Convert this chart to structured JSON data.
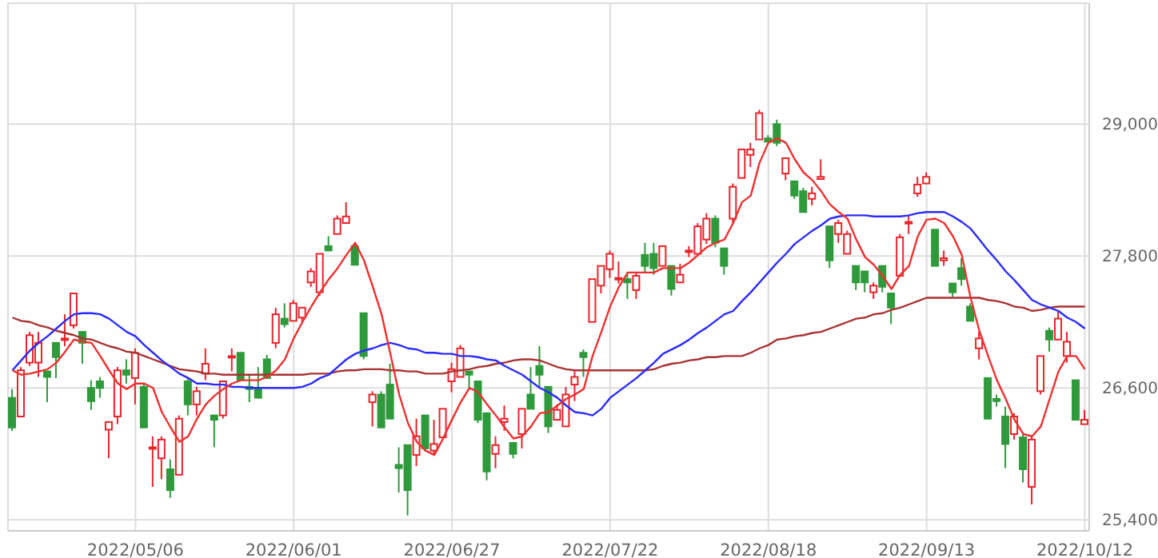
{
  "chart_data": {
    "type": "candlestick",
    "categories": [
      null,
      null,
      null,
      null,
      null,
      null,
      null,
      null,
      null,
      null,
      null,
      null,
      null,
      null,
      "2022/05/06",
      null,
      null,
      null,
      null,
      null,
      null,
      null,
      null,
      null,
      null,
      null,
      null,
      null,
      null,
      null,
      null,
      null,
      "2022/06/01",
      null,
      null,
      null,
      null,
      null,
      null,
      null,
      null,
      null,
      null,
      null,
      null,
      null,
      null,
      null,
      null,
      null,
      "2022/06/27",
      null,
      null,
      null,
      null,
      null,
      null,
      null,
      null,
      null,
      null,
      null,
      null,
      null,
      null,
      null,
      null,
      null,
      "2022/07/22",
      null,
      null,
      null,
      null,
      null,
      null,
      null,
      null,
      null,
      null,
      null,
      null,
      null,
      null,
      null,
      null,
      null,
      "2022/08/18",
      null,
      null,
      null,
      null,
      null,
      null,
      null,
      null,
      null,
      null,
      null,
      null,
      null,
      null,
      null,
      null,
      null,
      "2022/09/13",
      null,
      null,
      null,
      null,
      null,
      null,
      null,
      null,
      null,
      null,
      null,
      null,
      null,
      null,
      null,
      null,
      null,
      "2022/10/12"
    ],
    "ylim": [
      25300,
      30100
    ],
    "yticks": [
      {
        "value": 25400,
        "label": "25,400"
      },
      {
        "value": 26600,
        "label": "26,600"
      },
      {
        "value": 27800,
        "label": "27,800"
      },
      {
        "value": 29000,
        "label": "29,000"
      }
    ],
    "grid": true,
    "ohlc": [
      [
        26510,
        26590,
        26210,
        26240
      ],
      [
        26340,
        26790,
        26320,
        26760
      ],
      [
        26830,
        27110,
        26800,
        27080
      ],
      [
        26830,
        27110,
        26700,
        27010
      ],
      [
        26750,
        26760,
        26470,
        26700
      ],
      [
        27010,
        27020,
        26690,
        26880
      ],
      [
        27040,
        27270,
        26980,
        27050
      ],
      [
        27170,
        27470,
        27140,
        27460
      ],
      [
        27110,
        27110,
        26820,
        27010
      ],
      [
        26600,
        26670,
        26400,
        26480
      ],
      [
        26660,
        26700,
        26510,
        26600
      ],
      [
        26220,
        26310,
        25960,
        26290
      ],
      [
        26340,
        26790,
        26270,
        26760
      ],
      [
        26760,
        26860,
        26640,
        26720
      ],
      [
        26690,
        26960,
        26450,
        26920
      ],
      [
        26610,
        26640,
        26240,
        26240
      ],
      [
        26050,
        26160,
        25700,
        26060
      ],
      [
        25960,
        26160,
        25770,
        26130
      ],
      [
        25860,
        25950,
        25600,
        25670
      ],
      [
        25810,
        26350,
        25800,
        26320
      ],
      [
        26660,
        26690,
        26350,
        26450
      ],
      [
        26450,
        26610,
        26350,
        26570
      ],
      [
        26730,
        26960,
        26670,
        26820
      ],
      [
        26350,
        26350,
        26060,
        26310
      ],
      [
        26350,
        26670,
        26320,
        26660
      ],
      [
        26880,
        26960,
        26750,
        26890
      ],
      [
        26920,
        26920,
        26670,
        26670
      ],
      [
        26610,
        26720,
        26470,
        26590
      ],
      [
        26600,
        26790,
        26500,
        26510
      ],
      [
        26860,
        26900,
        26670,
        26690
      ],
      [
        27010,
        27330,
        26960,
        27270
      ],
      [
        27230,
        27370,
        27150,
        27180
      ],
      [
        27210,
        27400,
        27200,
        27370
      ],
      [
        27240,
        27330,
        27200,
        27330
      ],
      [
        27560,
        27690,
        27520,
        27660
      ],
      [
        27470,
        27840,
        27440,
        27820
      ],
      [
        27890,
        27980,
        27840,
        27850
      ],
      [
        28000,
        28170,
        27980,
        28140
      ],
      [
        28100,
        28290,
        28080,
        28160
      ],
      [
        27890,
        27920,
        27720,
        27720
      ],
      [
        27280,
        27300,
        26860,
        26890
      ],
      [
        26470,
        26570,
        26250,
        26540
      ],
      [
        26540,
        26570,
        26240,
        26240
      ],
      [
        26630,
        26820,
        26320,
        26320
      ],
      [
        25900,
        26060,
        25650,
        25870
      ],
      [
        26080,
        26080,
        25440,
        25670
      ],
      [
        25990,
        26320,
        25890,
        26160
      ],
      [
        26350,
        26350,
        26020,
        26050
      ],
      [
        26030,
        26310,
        25990,
        26090
      ],
      [
        26150,
        26430,
        26130,
        26410
      ],
      [
        26660,
        26830,
        26560,
        26770
      ],
      [
        26700,
        26990,
        26690,
        26960
      ],
      [
        26750,
        26760,
        26600,
        26720
      ],
      [
        26660,
        26670,
        26280,
        26310
      ],
      [
        26370,
        26370,
        25760,
        25840
      ],
      [
        26000,
        26160,
        25870,
        26080
      ],
      [
        26290,
        26440,
        26210,
        26320
      ],
      [
        26100,
        26100,
        25960,
        26000
      ],
      [
        26180,
        26430,
        26050,
        26410
      ],
      [
        26540,
        26790,
        26410,
        26410
      ],
      [
        26800,
        26980,
        26610,
        26720
      ],
      [
        26610,
        26610,
        26190,
        26250
      ],
      [
        26310,
        26450,
        26290,
        26400
      ],
      [
        26250,
        26610,
        26240,
        26540
      ],
      [
        26630,
        26760,
        26480,
        26700
      ],
      [
        26920,
        26950,
        26700,
        26880
      ],
      [
        27200,
        27600,
        27180,
        27590
      ],
      [
        27530,
        27720,
        27460,
        27710
      ],
      [
        27680,
        27850,
        27600,
        27820
      ],
      [
        27590,
        27750,
        27550,
        27600
      ],
      [
        27590,
        27650,
        27410,
        27560
      ],
      [
        27490,
        27650,
        27410,
        27620
      ],
      [
        27810,
        27920,
        27650,
        27710
      ],
      [
        27820,
        27920,
        27630,
        27690
      ],
      [
        27710,
        27890,
        27690,
        27890
      ],
      [
        27710,
        27730,
        27440,
        27500
      ],
      [
        27560,
        27730,
        27550,
        27630
      ],
      [
        27840,
        27890,
        27790,
        27850
      ],
      [
        27820,
        28100,
        27810,
        28070
      ],
      [
        27950,
        28190,
        27910,
        28140
      ],
      [
        28140,
        28170,
        27880,
        27920
      ],
      [
        27870,
        27870,
        27630,
        27710
      ],
      [
        28140,
        28460,
        28100,
        28430
      ],
      [
        28510,
        28780,
        28490,
        28770
      ],
      [
        28720,
        28830,
        28610,
        28770
      ],
      [
        28860,
        29130,
        28860,
        29100
      ],
      [
        28870,
        28900,
        28840,
        28840
      ],
      [
        29000,
        29040,
        28800,
        28830
      ],
      [
        28550,
        28710,
        28490,
        28690
      ],
      [
        28480,
        28480,
        28320,
        28350
      ],
      [
        28390,
        28420,
        28190,
        28200
      ],
      [
        28320,
        28430,
        28260,
        28370
      ],
      [
        28500,
        28680,
        28490,
        28520
      ],
      [
        28070,
        28070,
        27690,
        27760
      ],
      [
        28000,
        28130,
        27920,
        28100
      ],
      [
        27820,
        28030,
        27810,
        28000
      ],
      [
        27710,
        27720,
        27490,
        27560
      ],
      [
        27660,
        27660,
        27470,
        27560
      ],
      [
        27470,
        27560,
        27410,
        27530
      ],
      [
        27710,
        27720,
        27470,
        27520
      ],
      [
        27460,
        27460,
        27180,
        27330
      ],
      [
        27620,
        28000,
        27600,
        27970
      ],
      [
        28100,
        28170,
        28000,
        28110
      ],
      [
        28370,
        28520,
        28340,
        28450
      ],
      [
        28460,
        28560,
        28450,
        28520
      ],
      [
        28040,
        28050,
        27710,
        27710
      ],
      [
        27760,
        27850,
        27710,
        27780
      ],
      [
        27550,
        27570,
        27430,
        27470
      ],
      [
        27690,
        27780,
        27530,
        27590
      ],
      [
        27340,
        27370,
        27200,
        27210
      ],
      [
        26960,
        27110,
        26860,
        27050
      ],
      [
        26690,
        26690,
        26320,
        26320
      ],
      [
        26500,
        26540,
        26430,
        26480
      ],
      [
        26340,
        26430,
        25870,
        26090
      ],
      [
        26180,
        26370,
        26130,
        26340
      ],
      [
        26150,
        26180,
        25740,
        25860
      ],
      [
        25700,
        26160,
        25540,
        26130
      ],
      [
        26570,
        26910,
        26540,
        26890
      ],
      [
        27120,
        27150,
        26930,
        27040
      ],
      [
        27040,
        27300,
        27040,
        27230
      ],
      [
        26890,
        27110,
        26830,
        27020
      ],
      [
        26670,
        26670,
        26290,
        26310
      ],
      [
        26270,
        26400,
        26250,
        26310
      ]
    ],
    "colors": [
      "#2f9a3c",
      "#e8242b",
      "#e8242b",
      "#e8242b",
      "#2f9a3c",
      "#2f9a3c",
      "#e8242b",
      "#e8242b",
      "#2f9a3c",
      "#2f9a3c",
      "#2f9a3c",
      "#e8242b",
      "#e8242b",
      "#2f9a3c",
      "#e8242b",
      "#2f9a3c",
      "#e8242b",
      "#e8242b",
      "#2f9a3c",
      "#e8242b",
      "#2f9a3c",
      "#e8242b",
      "#e8242b",
      "#2f9a3c",
      "#e8242b",
      "#e8242b",
      "#2f9a3c",
      "#2f9a3c",
      "#2f9a3c",
      "#2f9a3c",
      "#e8242b",
      "#2f9a3c",
      "#e8242b",
      "#e8242b",
      "#e8242b",
      "#e8242b",
      "#2f9a3c",
      "#e8242b",
      "#e8242b",
      "#2f9a3c",
      "#2f9a3c",
      "#e8242b",
      "#2f9a3c",
      "#2f9a3c",
      "#2f9a3c",
      "#2f9a3c",
      "#e8242b",
      "#2f9a3c",
      "#e8242b",
      "#e8242b",
      "#e8242b",
      "#e8242b",
      "#2f9a3c",
      "#2f9a3c",
      "#2f9a3c",
      "#e8242b",
      "#e8242b",
      "#2f9a3c",
      "#e8242b",
      "#2f9a3c",
      "#2f9a3c",
      "#2f9a3c",
      "#e8242b",
      "#e8242b",
      "#e8242b",
      "#2f9a3c",
      "#e8242b",
      "#e8242b",
      "#e8242b",
      "#e8242b",
      "#2f9a3c",
      "#e8242b",
      "#2f9a3c",
      "#2f9a3c",
      "#e8242b",
      "#2f9a3c",
      "#e8242b",
      "#e8242b",
      "#e8242b",
      "#e8242b",
      "#2f9a3c",
      "#2f9a3c",
      "#e8242b",
      "#e8242b",
      "#e8242b",
      "#e8242b",
      "#2f9a3c",
      "#2f9a3c",
      "#e8242b",
      "#2f9a3c",
      "#2f9a3c",
      "#e8242b",
      "#e8242b",
      "#2f9a3c",
      "#e8242b",
      "#e8242b",
      "#2f9a3c",
      "#2f9a3c",
      "#e8242b",
      "#2f9a3c",
      "#2f9a3c",
      "#e8242b",
      "#e8242b",
      "#e8242b",
      "#e8242b",
      "#2f9a3c",
      "#e8242b",
      "#2f9a3c",
      "#2f9a3c",
      "#2f9a3c",
      "#e8242b",
      "#2f9a3c",
      "#2f9a3c",
      "#2f9a3c",
      "#e8242b",
      "#2f9a3c",
      "#e8242b",
      "#e8242b",
      "#2f9a3c",
      "#e8242b",
      "#e8242b",
      "#2f9a3c",
      "#e8242b"
    ],
    "series": [
      {
        "type": "line",
        "color": "#a83232",
        "values": [
          27240,
          27210,
          27200,
          27170,
          27150,
          27120,
          27100,
          27080,
          27050,
          27040,
          27010,
          26980,
          26960,
          26930,
          26920,
          26890,
          26860,
          26830,
          26800,
          26770,
          26760,
          26750,
          26730,
          26730,
          26720,
          26720,
          26720,
          26720,
          26720,
          26720,
          26720,
          26720,
          26720,
          26720,
          26730,
          26730,
          26730,
          26750,
          26760,
          26760,
          26770,
          26770,
          26770,
          26760,
          26760,
          26750,
          26750,
          26730,
          26730,
          26730,
          26750,
          26760,
          26770,
          26790,
          26800,
          26820,
          26830,
          26850,
          26860,
          26860,
          26850,
          26820,
          26790,
          26770,
          26760,
          26760,
          26760,
          26760,
          26760,
          26760,
          26760,
          26760,
          26760,
          26770,
          26800,
          26820,
          26830,
          26850,
          26860,
          26880,
          26880,
          26890,
          26890,
          26890,
          26920,
          26960,
          26990,
          27040,
          27050,
          27070,
          27080,
          27100,
          27110,
          27140,
          27170,
          27200,
          27230,
          27240,
          27270,
          27280,
          27310,
          27330,
          27360,
          27390,
          27420,
          27420,
          27420,
          27420,
          27420,
          27420,
          27420,
          27400,
          27390,
          27370,
          27340,
          27330,
          27300,
          27310,
          27330,
          27340,
          27340,
          27340,
          27340
        ]
      },
      {
        "type": "line",
        "color": "#2a2aff",
        "values": [
          26760,
          26850,
          26940,
          27010,
          27070,
          27140,
          27210,
          27270,
          27280,
          27280,
          27270,
          27230,
          27170,
          27110,
          27070,
          26990,
          26920,
          26850,
          26790,
          26730,
          26690,
          26640,
          26640,
          26630,
          26630,
          26610,
          26610,
          26600,
          26600,
          26600,
          26600,
          26600,
          26600,
          26610,
          26640,
          26690,
          26720,
          26790,
          26860,
          26910,
          26940,
          26960,
          26990,
          27010,
          26990,
          26960,
          26950,
          26920,
          26920,
          26910,
          26910,
          26890,
          26890,
          26880,
          26860,
          26850,
          26800,
          26760,
          26720,
          26660,
          26600,
          26560,
          26510,
          26440,
          26380,
          26370,
          26350,
          26410,
          26510,
          26570,
          26630,
          26690,
          26760,
          26830,
          26910,
          26950,
          26990,
          27040,
          27100,
          27150,
          27210,
          27270,
          27300,
          27390,
          27470,
          27560,
          27650,
          27740,
          27820,
          27910,
          27970,
          28030,
          28080,
          28140,
          28160,
          28170,
          28170,
          28170,
          28160,
          28160,
          28160,
          28160,
          28170,
          28190,
          28200,
          28200,
          28200,
          28160,
          28110,
          28050,
          27950,
          27850,
          27760,
          27660,
          27580,
          27490,
          27400,
          27360,
          27330,
          27300,
          27240,
          27200,
          27140
        ]
      },
      {
        "type": "line",
        "color": "#f03030",
        "values": [
          26760,
          26720,
          26730,
          26750,
          26770,
          26830,
          26930,
          27040,
          27020,
          27010,
          26890,
          26760,
          26640,
          26590,
          26640,
          26640,
          26600,
          26380,
          26240,
          26110,
          26160,
          26320,
          26450,
          26530,
          26590,
          26640,
          26670,
          26670,
          26670,
          26700,
          26760,
          26860,
          27050,
          27200,
          27340,
          27470,
          27590,
          27690,
          27810,
          27920,
          27760,
          27520,
          27270,
          26910,
          26540,
          26280,
          26110,
          26030,
          25990,
          26140,
          26310,
          26470,
          26600,
          26560,
          26450,
          26350,
          26240,
          26140,
          26160,
          26250,
          26370,
          26380,
          26440,
          26500,
          26540,
          26590,
          26890,
          27110,
          27340,
          27520,
          27650,
          27650,
          27650,
          27650,
          27690,
          27690,
          27690,
          27740,
          27810,
          27880,
          27920,
          27950,
          28100,
          28290,
          28350,
          28650,
          28830,
          28870,
          28830,
          28680,
          28560,
          28490,
          28390,
          28270,
          28200,
          28140,
          27950,
          27790,
          27720,
          27620,
          27500,
          27630,
          27710,
          27980,
          28130,
          28140,
          28100,
          27980,
          27810,
          27420,
          27120,
          26890,
          26670,
          26500,
          26310,
          26180,
          26160,
          26250,
          26500,
          26750,
          26890,
          26890,
          26770
        ]
      }
    ]
  }
}
